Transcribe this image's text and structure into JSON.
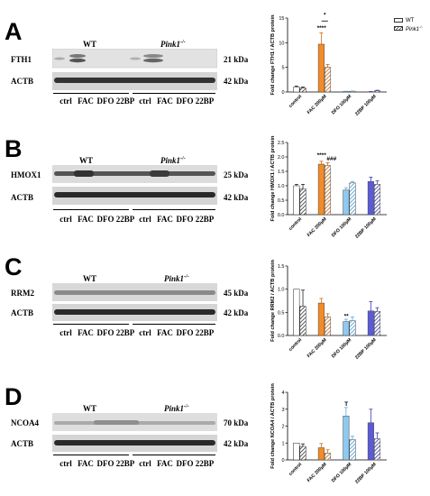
{
  "panels": [
    {
      "letter": "A",
      "blot_labels": [
        "FTH1",
        "ACTB"
      ],
      "kda": [
        "21 kDa",
        "42 kDa"
      ],
      "genotypes": [
        "WT",
        "Pink1",
        "-/-"
      ],
      "lanes": [
        "ctrl",
        "FAC",
        "DFO",
        "22BP",
        "ctrl",
        "FAC",
        "DFO",
        "22BP"
      ]
    },
    {
      "letter": "B",
      "blot_labels": [
        "HMOX1",
        "ACTB"
      ],
      "kda": [
        "25 kDa",
        "42 kDa"
      ],
      "genotypes": [
        "WT",
        "Pink1",
        "-/-"
      ],
      "lanes": [
        "ctrl",
        "FAC",
        "DFO",
        "22BP",
        "ctrl",
        "FAC",
        "DFO",
        "22BP"
      ]
    },
    {
      "letter": "C",
      "blot_labels": [
        "RRM2",
        "ACTB"
      ],
      "kda": [
        "45 kDa",
        "42 kDa"
      ],
      "genotypes": [
        "WT",
        "Pink1",
        "-/-"
      ],
      "lanes": [
        "ctrl",
        "FAC",
        "DFO",
        "22BP",
        "ctrl",
        "FAC",
        "DFO",
        "22BP"
      ]
    },
    {
      "letter": "D",
      "blot_labels": [
        "NCOA4",
        "ACTB"
      ],
      "kda": [
        "70 kDa",
        "42 kDa"
      ],
      "genotypes": [
        "WT",
        "Pink1",
        "-/-"
      ],
      "lanes": [
        "ctrl",
        "FAC",
        "DFO",
        "22BP",
        "ctrl",
        "FAC",
        "DFO",
        "22BP"
      ]
    }
  ],
  "legend": {
    "wt": "WT",
    "pink": "Pink1",
    "pink_sup": "-/-"
  },
  "colors": {
    "control": "#ffffff",
    "fac": "#f28c28",
    "dfo": "#8ec9f0",
    "bp22": "#5b5bd6"
  },
  "chart_data": [
    {
      "type": "bar",
      "ylabel": "Fold change FTH1 / ACTB protein",
      "categories": [
        "control",
        "FAC 200µM",
        "DFO 100µM",
        "22BP 100µM"
      ],
      "ylim": [
        0,
        15
      ],
      "yticks": [
        0,
        5,
        10,
        15
      ],
      "series": [
        {
          "name": "WT",
          "values": [
            1.0,
            9.7,
            0.1,
            0.05
          ],
          "errors": [
            0.2,
            2.3,
            0.05,
            0.05
          ]
        },
        {
          "name": "Pink1-/-",
          "values": [
            0.8,
            5.0,
            0.15,
            0.25
          ],
          "errors": [
            0.2,
            0.6,
            0.05,
            0.1
          ]
        }
      ],
      "annotations": [
        {
          "text": "****",
          "category": 1,
          "y": 12.6
        },
        {
          "text": "*",
          "category": 1,
          "y": 15.3,
          "bracket": true
        }
      ]
    },
    {
      "type": "bar",
      "ylabel": "Fold change HMOX1 / ACTB protein",
      "categories": [
        "control",
        "FAC 200µM",
        "DFO 100µM",
        "22BP 100µM"
      ],
      "ylim": [
        0,
        2.5
      ],
      "yticks": [
        0,
        0.5,
        1.0,
        1.5,
        2.0,
        2.5
      ],
      "series": [
        {
          "name": "WT",
          "values": [
            1.0,
            1.75,
            0.85,
            1.15
          ],
          "errors": [
            0.05,
            0.1,
            0.08,
            0.15
          ]
        },
        {
          "name": "Pink1-/-",
          "values": [
            0.9,
            1.7,
            1.1,
            1.05
          ],
          "errors": [
            0.15,
            0.1,
            0.05,
            0.12
          ]
        }
      ],
      "annotations": [
        {
          "text": "****",
          "category": 1,
          "y": 2.0
        },
        {
          "text": "###",
          "category": 1,
          "y": 1.87,
          "series": 1
        }
      ]
    },
    {
      "type": "bar",
      "ylabel": "Fold change RRM2 / ACTB protein",
      "categories": [
        "control",
        "FAC 200µM",
        "DFO 100µM",
        "22BP 100µM"
      ],
      "ylim": [
        0,
        1.5
      ],
      "yticks": [
        0,
        0.5,
        1.0,
        1.5
      ],
      "series": [
        {
          "name": "WT",
          "values": [
            1.0,
            0.7,
            0.3,
            0.53
          ],
          "errors": [
            0.0,
            0.1,
            0.05,
            0.2
          ]
        },
        {
          "name": "Pink1-/-",
          "values": [
            0.63,
            0.4,
            0.32,
            0.52
          ],
          "errors": [
            0.35,
            0.07,
            0.08,
            0.08
          ]
        }
      ],
      "annotations": [
        {
          "text": "**",
          "category": 2,
          "y": 0.38
        }
      ]
    },
    {
      "type": "bar",
      "ylabel": "Fold change NCOA4 / ACTB protein",
      "categories": [
        "control",
        "FAC 200µM",
        "DFO 100µM",
        "22BP 100µM"
      ],
      "ylim": [
        0,
        4
      ],
      "yticks": [
        0,
        1,
        2,
        3,
        4
      ],
      "series": [
        {
          "name": "WT",
          "values": [
            1.0,
            0.72,
            2.6,
            2.2
          ],
          "errors": [
            0.0,
            0.25,
            0.5,
            0.8
          ]
        },
        {
          "name": "Pink1-/-",
          "values": [
            0.8,
            0.4,
            1.2,
            1.25
          ],
          "errors": [
            0.15,
            0.2,
            0.2,
            0.35
          ]
        }
      ],
      "annotations": [
        {
          "text": "T",
          "category": 2,
          "y": 3.2
        }
      ]
    }
  ]
}
